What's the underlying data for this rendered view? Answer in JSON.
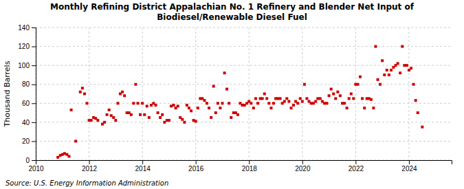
{
  "chart_data": {
    "type": "scatter",
    "title": "Monthly Refining District Appalachian No. 1 Refinery and Blender Net Input of\nBiodiesel/Renewable Diesel Fuel",
    "ylabel": "Thousand Barrels",
    "annotations": [
      "Source: U.S. Energy Information Administration"
    ],
    "color": "#cc0000",
    "marker": "square",
    "grid": true,
    "xlim": [
      2010.0,
      2025.6
    ],
    "xticks": [
      2010,
      2012,
      2014,
      2016,
      2018,
      2020,
      2022,
      2024
    ],
    "ylim": [
      0,
      140
    ],
    "yticks": [
      0,
      20,
      40,
      60,
      80,
      100,
      120,
      140
    ],
    "x": [
      2010.83,
      2010.92,
      2011.0,
      2011.08,
      2011.17,
      2011.25,
      2011.33,
      2011.5,
      2011.67,
      2011.75,
      2011.83,
      2011.92,
      2012.0,
      2012.08,
      2012.17,
      2012.25,
      2012.33,
      2012.5,
      2012.58,
      2012.67,
      2012.75,
      2012.83,
      2012.92,
      2013.0,
      2013.08,
      2013.17,
      2013.25,
      2013.33,
      2013.42,
      2013.5,
      2013.58,
      2013.67,
      2013.75,
      2013.83,
      2013.92,
      2014.0,
      2014.08,
      2014.17,
      2014.25,
      2014.33,
      2014.42,
      2014.5,
      2014.58,
      2014.67,
      2014.75,
      2014.83,
      2014.92,
      2015.0,
      2015.08,
      2015.17,
      2015.25,
      2015.33,
      2015.42,
      2015.5,
      2015.58,
      2015.67,
      2015.75,
      2015.83,
      2015.92,
      2016.0,
      2016.08,
      2016.17,
      2016.25,
      2016.33,
      2016.42,
      2016.5,
      2016.58,
      2016.67,
      2016.75,
      2016.83,
      2016.92,
      2017.0,
      2017.08,
      2017.17,
      2017.25,
      2017.33,
      2017.42,
      2017.5,
      2017.58,
      2017.67,
      2017.75,
      2017.83,
      2017.92,
      2018.0,
      2018.08,
      2018.17,
      2018.25,
      2018.33,
      2018.42,
      2018.5,
      2018.58,
      2018.67,
      2018.75,
      2018.83,
      2018.92,
      2019.0,
      2019.08,
      2019.17,
      2019.25,
      2019.33,
      2019.42,
      2019.5,
      2019.58,
      2019.67,
      2019.75,
      2019.83,
      2019.92,
      2020.0,
      2020.08,
      2020.17,
      2020.25,
      2020.33,
      2020.42,
      2020.5,
      2020.58,
      2020.67,
      2020.75,
      2020.83,
      2020.92,
      2021.0,
      2021.08,
      2021.17,
      2021.25,
      2021.33,
      2021.42,
      2021.5,
      2021.58,
      2021.67,
      2021.75,
      2021.83,
      2021.92,
      2022.0,
      2022.08,
      2022.17,
      2022.25,
      2022.33,
      2022.42,
      2022.5,
      2022.58,
      2022.67,
      2022.75,
      2022.83,
      2022.92,
      2023.0,
      2023.08,
      2023.17,
      2023.25,
      2023.33,
      2023.42,
      2023.5,
      2023.58,
      2023.67,
      2023.75,
      2023.83,
      2023.92,
      2024.0,
      2024.08,
      2024.17,
      2024.25,
      2024.33,
      2024.5
    ],
    "values": [
      3,
      5,
      6,
      7,
      6,
      4,
      53,
      20,
      72,
      76,
      70,
      60,
      42,
      42,
      45,
      44,
      42,
      38,
      40,
      48,
      53,
      47,
      45,
      42,
      60,
      70,
      72,
      68,
      50,
      50,
      48,
      60,
      80,
      60,
      48,
      60,
      48,
      57,
      45,
      58,
      60,
      58,
      50,
      45,
      48,
      40,
      42,
      42,
      57,
      58,
      55,
      57,
      45,
      43,
      40,
      58,
      55,
      52,
      42,
      41,
      55,
      65,
      65,
      63,
      60,
      55,
      45,
      78,
      50,
      60,
      55,
      60,
      92,
      75,
      60,
      45,
      50,
      50,
      48,
      60,
      58,
      58,
      60,
      62,
      60,
      55,
      65,
      60,
      65,
      65,
      70,
      65,
      60,
      55,
      60,
      65,
      65,
      65,
      60,
      62,
      65,
      62,
      55,
      58,
      62,
      60,
      65,
      62,
      80,
      65,
      62,
      60,
      60,
      62,
      65,
      65,
      62,
      60,
      60,
      68,
      75,
      70,
      65,
      72,
      68,
      60,
      60,
      55,
      65,
      70,
      65,
      80,
      80,
      88,
      65,
      55,
      65,
      65,
      64,
      55,
      120,
      85,
      80,
      105,
      90,
      95,
      90,
      95,
      98,
      100,
      102,
      92,
      120,
      100,
      100,
      95,
      97,
      80,
      63,
      50,
      35
    ]
  }
}
